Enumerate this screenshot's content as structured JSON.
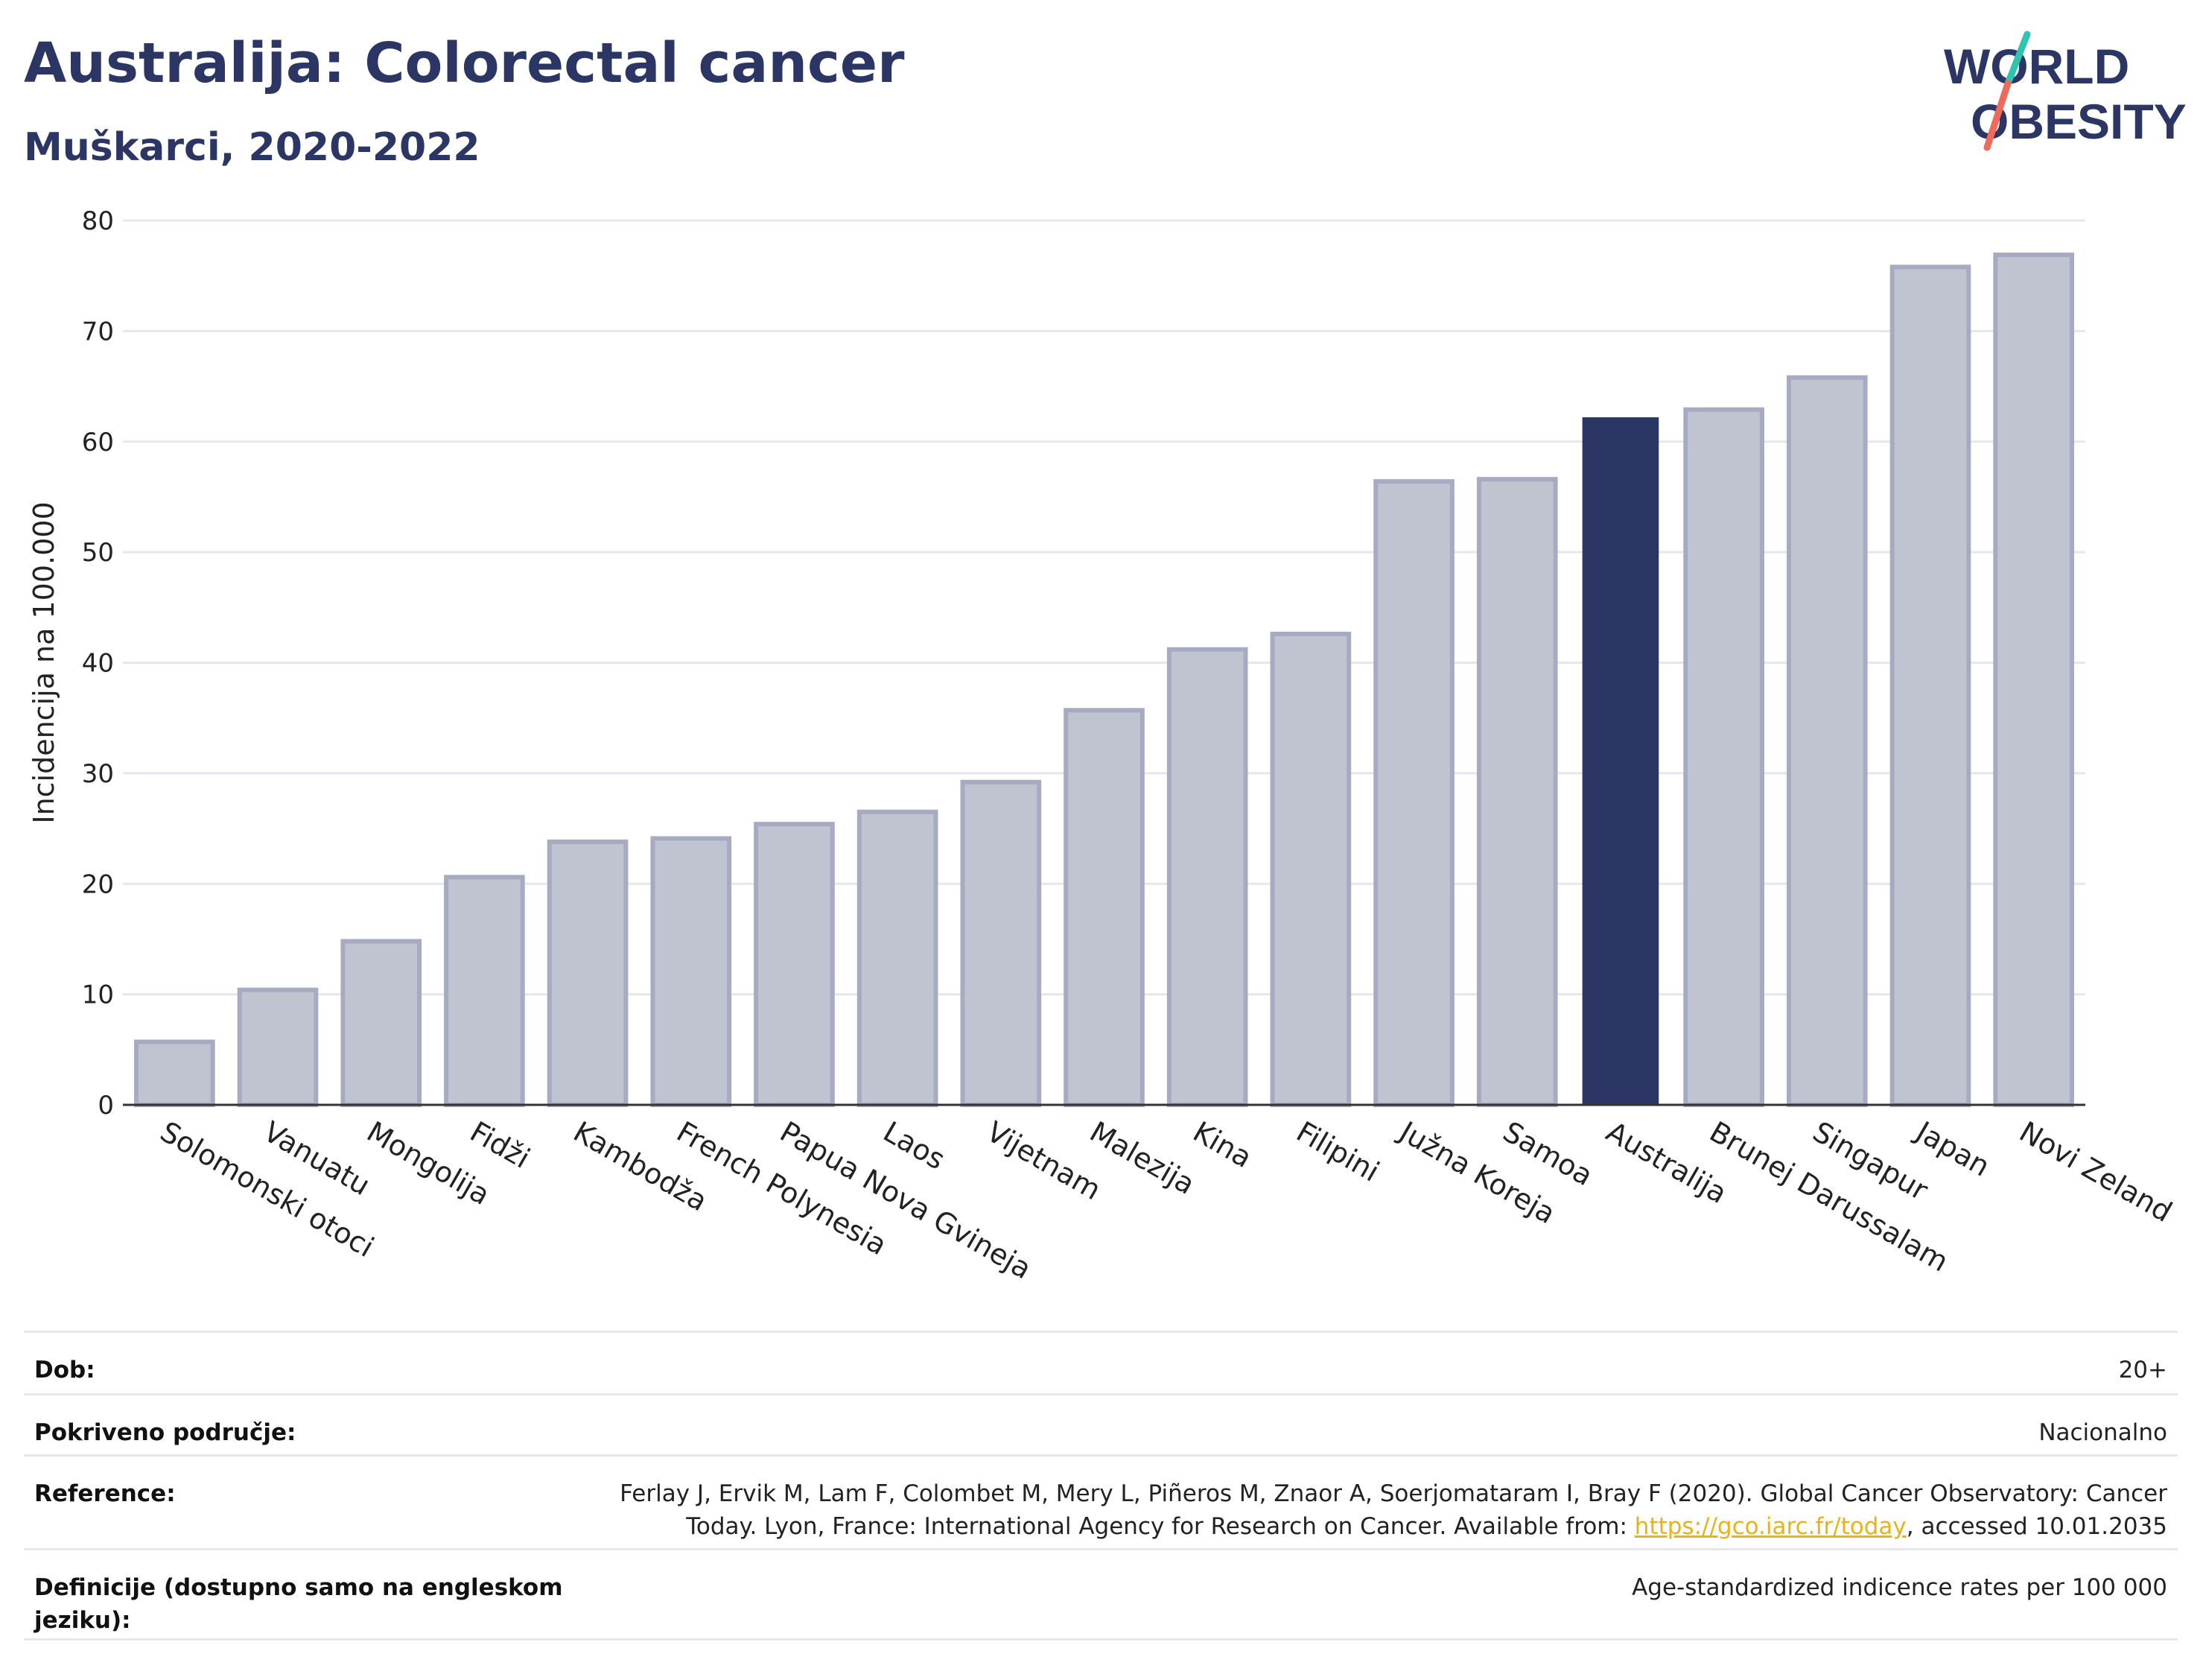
{
  "header": {
    "title": "Australija: Colorectal cancer",
    "subtitle": "Muškarci, 2020-2022"
  },
  "logo": {
    "line1": "WORLD",
    "line2": "OBESITY",
    "accent_colors": [
      "#2fc4b2",
      "#ef6a5a"
    ]
  },
  "chart_data": {
    "type": "bar",
    "title": "Australija: Colorectal cancer",
    "subtitle": "Muškarci, 2020-2022",
    "ylabel": "Incidencija na 100.000",
    "xlabel": "",
    "ylim": [
      0,
      80
    ],
    "yticks": [
      0,
      10,
      20,
      30,
      40,
      50,
      60,
      70,
      80
    ],
    "grid": true,
    "highlight": "Australija",
    "colors": {
      "default": "#c0c3d0",
      "default_edge": "#a7abc1",
      "highlight": "#2b3664"
    },
    "categories": [
      "Solomonski otoci",
      "Vanuatu",
      "Mongolija",
      "Fidži",
      "Kambodža",
      "French Polynesia",
      "Papua Nova Gvineja",
      "Laos",
      "Vijetnam",
      "Malezija",
      "Kina",
      "Filipini",
      "Južna Koreja",
      "Samoa",
      "Australija",
      "Brunej Darussalam",
      "Singapur",
      "Japan",
      "Novi Zeland"
    ],
    "values": [
      5.7,
      10.4,
      14.8,
      20.6,
      23.8,
      24.1,
      25.4,
      26.5,
      29.2,
      35.7,
      41.2,
      42.6,
      56.4,
      56.6,
      62.2,
      62.9,
      65.8,
      75.8,
      76.9
    ]
  },
  "meta": {
    "age_label": "Dob:",
    "age_value": "20+",
    "coverage_label": "Pokriveno područje:",
    "coverage_value": "Nacionalno",
    "reference_label": "Reference:",
    "reference_line1": "Ferlay J, Ervik M, Lam F, Colombet M, Mery L, Piñeros M, Znaor A, Soerjomataram I, Bray F (2020). Global Cancer Observatory: Cancer",
    "reference_line2_pre": "Today. Lyon, France: International Agency for Research on Cancer. Available from: ",
    "reference_link": "https://gco.iarc.fr/today",
    "reference_line2_post": ", accessed 10.01.2035",
    "definitions_label": "Definicije (dostupno samo na engleskom jeziku):",
    "definitions_value": "Age-standardized indicence rates per 100 000"
  }
}
